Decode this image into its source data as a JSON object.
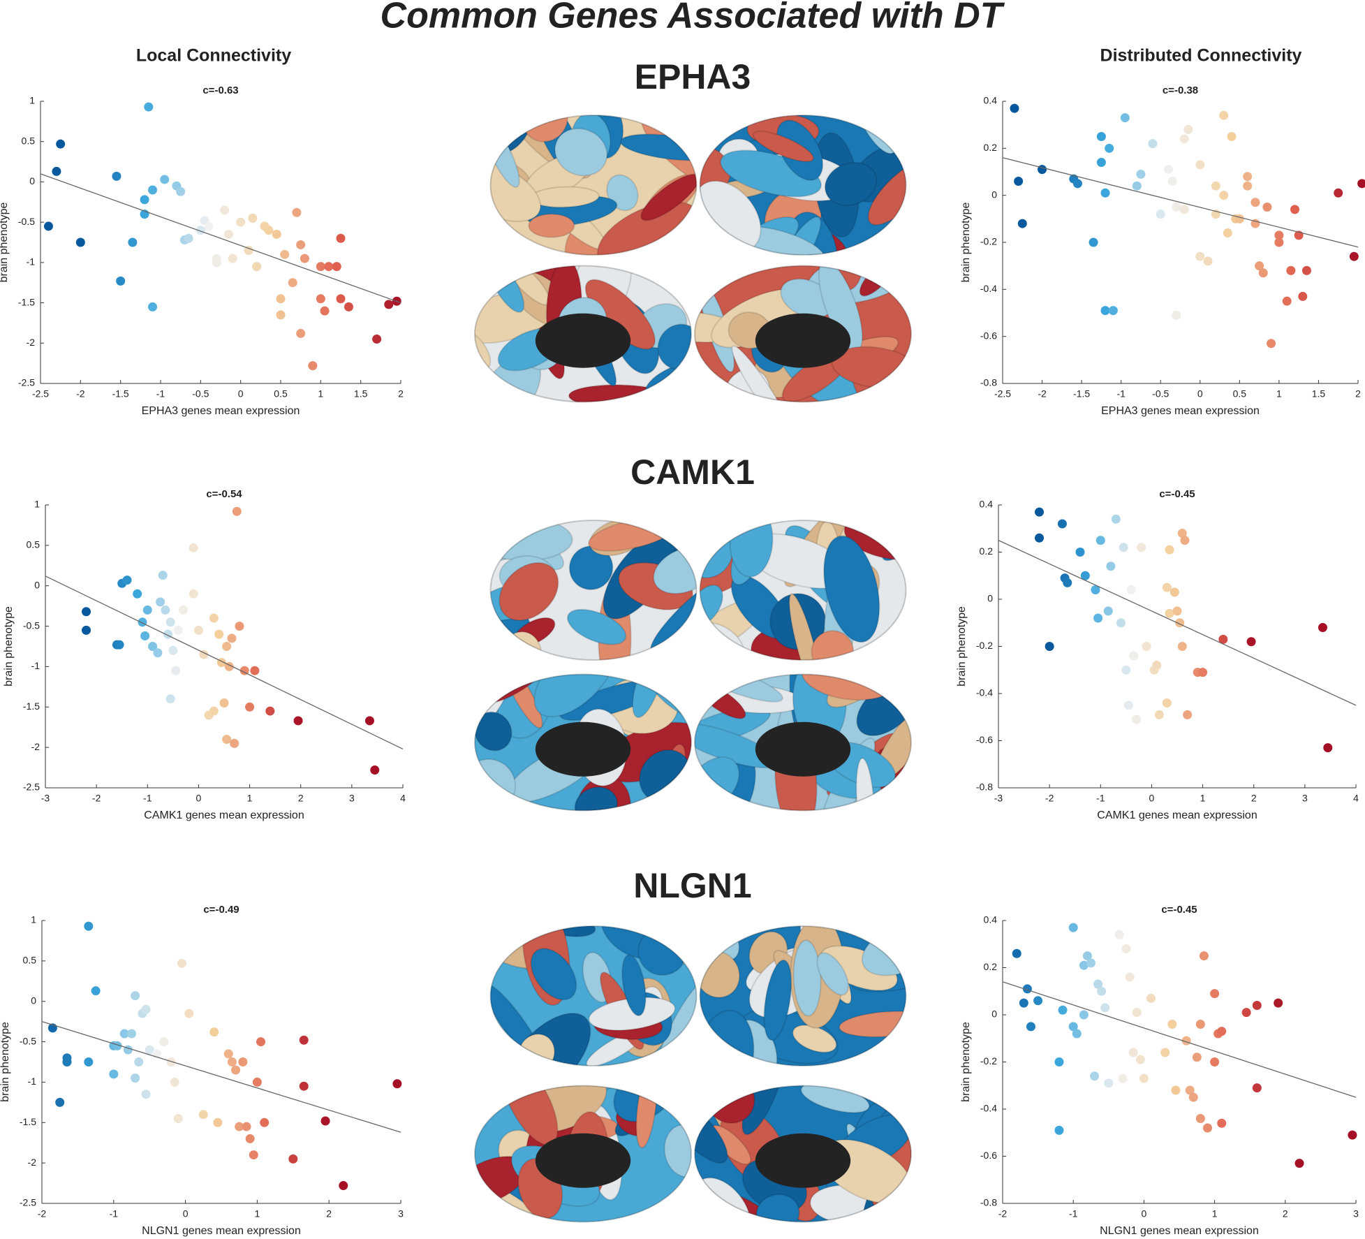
{
  "title": "Common Genes Associated with DT",
  "column_titles": [
    "Local Connectivity",
    "Distributed Connectivity"
  ],
  "genes": [
    "EPHA3",
    "CAMK1",
    "NLGN1"
  ],
  "chart_data": [
    {
      "type": "scatter",
      "title": "c=-0.63",
      "xlabel": "EPHA3 genes mean expression",
      "ylabel": "brain phenotype",
      "xlim": [
        -2.5,
        2
      ],
      "xticks": [
        -2.5,
        -2,
        -1.5,
        -1,
        -0.5,
        0,
        0.5,
        1,
        1.5,
        2
      ],
      "ylim": [
        -2.5,
        1
      ],
      "yticks": [
        -2.5,
        -2,
        -1.5,
        -1,
        -0.5,
        0,
        0.5,
        1
      ],
      "colormap": [
        "#08589e",
        "#3aa6dc",
        "#f0f0f0",
        "#f3cf9c",
        "#e0604f",
        "#a50f26"
      ],
      "color_limits": [
        -2,
        2
      ],
      "fit": {
        "x": [
          -2.5,
          2
        ],
        "y": [
          0.1,
          -1.5
        ],
        "color": "#666666"
      },
      "x": [
        -2.4,
        -2.3,
        -2.25,
        -2,
        -1.55,
        -1.5,
        -1.35,
        -1.2,
        -1.2,
        -1.15,
        -1.1,
        -1.1,
        -0.95,
        -0.8,
        -0.75,
        -0.7,
        -0.65,
        -0.5,
        -0.45,
        -0.4,
        -0.3,
        -0.3,
        -0.2,
        -0.15,
        -0.1,
        0,
        0.1,
        0.15,
        0.2,
        0.3,
        0.35,
        0.45,
        0.5,
        0.5,
        0.55,
        0.65,
        0.7,
        0.75,
        0.75,
        0.8,
        0.9,
        1,
        1,
        1.05,
        1.1,
        1.2,
        1.25,
        1.25,
        1.35,
        1.7,
        1.85,
        1.95
      ],
      "y": [
        -0.55,
        0.13,
        0.47,
        -0.75,
        0.07,
        -1.23,
        -0.75,
        -0.22,
        -0.4,
        0.93,
        -0.1,
        -1.55,
        0.03,
        -0.05,
        -0.12,
        -0.72,
        -0.7,
        -0.6,
        -0.48,
        -0.55,
        -0.95,
        -1.0,
        -0.35,
        -0.65,
        -0.95,
        -0.5,
        -0.85,
        -0.45,
        -1.05,
        -0.55,
        -0.6,
        -0.65,
        -1.45,
        -1.65,
        -0.9,
        -1.25,
        -0.38,
        -0.78,
        -1.88,
        -0.95,
        -2.28,
        -1.45,
        -1.05,
        -1.6,
        -1.05,
        -1.05,
        -0.7,
        -1.45,
        -1.55,
        -1.95,
        -1.52,
        -1.48
      ]
    },
    {
      "type": "scatter",
      "title": "c=-0.38",
      "xlabel": "EPHA3 genes mean expression",
      "ylabel": "brain phenotype",
      "xlim": [
        -2.5,
        2
      ],
      "xticks": [
        -2.5,
        -2,
        -1.5,
        -1,
        -0.5,
        0,
        0.5,
        1,
        1.5,
        2
      ],
      "ylim": [
        -0.8,
        0.4
      ],
      "yticks": [
        -0.8,
        -0.6,
        -0.4,
        -0.2,
        0,
        0.2,
        0.4
      ],
      "colormap": [
        "#08589e",
        "#3aa6dc",
        "#f0f0f0",
        "#f3cf9c",
        "#e0604f",
        "#a50f26"
      ],
      "color_limits": [
        -2,
        2
      ],
      "fit": {
        "x": [
          -2.5,
          2
        ],
        "y": [
          0.16,
          -0.22
        ],
        "color": "#666666"
      },
      "x": [
        -2.35,
        -2.3,
        -2.25,
        -2,
        -1.6,
        -1.55,
        -1.35,
        -1.25,
        -1.25,
        -1.2,
        -1.2,
        -1.15,
        -1.1,
        -0.95,
        -0.8,
        -0.75,
        -0.6,
        -0.5,
        -0.4,
        -0.35,
        -0.3,
        -0.3,
        -0.2,
        -0.2,
        -0.15,
        0,
        0,
        0.1,
        0.2,
        0.2,
        0.3,
        0.3,
        0.35,
        0.4,
        0.45,
        0.5,
        0.6,
        0.6,
        0.7,
        0.7,
        0.75,
        0.8,
        0.85,
        0.9,
        1,
        1,
        1.1,
        1.15,
        1.2,
        1.25,
        1.3,
        1.35,
        1.75,
        1.95,
        2.05
      ],
      "y": [
        0.37,
        0.06,
        -0.12,
        0.11,
        0.07,
        0.05,
        -0.2,
        0.25,
        0.14,
        0.01,
        -0.49,
        0.2,
        -0.49,
        0.33,
        0.04,
        0.09,
        0.22,
        -0.08,
        0.11,
        0.06,
        -0.05,
        -0.51,
        0.24,
        -0.06,
        0.28,
        0.13,
        -0.26,
        -0.28,
        -0.08,
        0.04,
        0,
        0.34,
        -0.16,
        0.25,
        -0.1,
        -0.1,
        0.08,
        0.04,
        -0.03,
        -0.12,
        -0.3,
        -0.33,
        -0.05,
        -0.63,
        -0.2,
        -0.17,
        -0.45,
        -0.32,
        -0.06,
        -0.17,
        -0.43,
        -0.32,
        0.01,
        -0.26,
        0.05
      ]
    },
    {
      "type": "scatter",
      "title": "c=-0.54",
      "xlabel": "CAMK1 genes mean expression",
      "ylabel": "brain phenotype",
      "xlim": [
        -3,
        4
      ],
      "xticks": [
        -3,
        -2,
        -1,
        0,
        1,
        2,
        3,
        4
      ],
      "ylim": [
        -2.5,
        1
      ],
      "yticks": [
        -2.5,
        -2,
        -1.5,
        -1,
        -0.5,
        0,
        0.5,
        1
      ],
      "colormap": [
        "#08589e",
        "#3aa6dc",
        "#f0f0f0",
        "#f3cf9c",
        "#e0604f",
        "#a50f26"
      ],
      "color_limits": [
        -2,
        2
      ],
      "fit": {
        "x": [
          -3,
          4
        ],
        "y": [
          0.12,
          -2.02
        ],
        "color": "#666666"
      },
      "x": [
        -2.2,
        -2.2,
        -1.6,
        -1.55,
        -1.5,
        -1.4,
        -1.2,
        -1.1,
        -1.05,
        -1,
        -0.9,
        -0.8,
        -0.75,
        -0.7,
        -0.65,
        -0.6,
        -0.55,
        -0.55,
        -0.5,
        -0.45,
        -0.4,
        -0.3,
        -0.1,
        -0.1,
        0,
        0.1,
        0.2,
        0.3,
        0.3,
        0.4,
        0.45,
        0.5,
        0.55,
        0.55,
        0.6,
        0.65,
        0.7,
        0.75,
        0.8,
        0.9,
        1,
        1.1,
        1.4,
        1.95,
        3.35,
        3.45
      ],
      "y": [
        -0.32,
        -0.55,
        -0.73,
        -0.73,
        0.03,
        0.07,
        -0.1,
        -0.45,
        -0.62,
        -0.3,
        -0.75,
        -0.83,
        -0.2,
        0.13,
        -0.3,
        -0.6,
        -0.45,
        -1.4,
        -0.8,
        -1.05,
        -0.55,
        -0.3,
        0.47,
        -0.1,
        -0.55,
        -0.85,
        -1.6,
        -1.55,
        -0.4,
        -0.6,
        -0.95,
        -1.45,
        -0.75,
        -1.9,
        -1.0,
        -0.65,
        -1.95,
        0.92,
        -0.5,
        -1.05,
        -1.5,
        -1.05,
        -1.55,
        -1.67,
        -1.67,
        -2.28
      ]
    },
    {
      "type": "scatter",
      "title": "c=-0.45",
      "xlabel": "CAMK1 genes mean expression",
      "ylabel": "brain phenotype",
      "xlim": [
        -3,
        4
      ],
      "xticks": [
        -3,
        -2,
        -1,
        0,
        1,
        2,
        3,
        4
      ],
      "ylim": [
        -0.8,
        0.4
      ],
      "yticks": [
        -0.8,
        -0.6,
        -0.4,
        -0.2,
        0,
        0.2,
        0.4
      ],
      "colormap": [
        "#08589e",
        "#3aa6dc",
        "#f0f0f0",
        "#f3cf9c",
        "#e0604f",
        "#a50f26"
      ],
      "color_limits": [
        -2,
        2
      ],
      "fit": {
        "x": [
          -3,
          4
        ],
        "y": [
          0.25,
          -0.45
        ],
        "color": "#666666"
      },
      "x": [
        -2.2,
        -2.2,
        -2,
        -1.75,
        -1.7,
        -1.65,
        -1.4,
        -1.3,
        -1.1,
        -1,
        -1.05,
        -0.85,
        -0.8,
        -0.7,
        -0.6,
        -0.55,
        -0.5,
        -0.45,
        -0.4,
        -0.35,
        -0.3,
        -0.2,
        -0.1,
        0.05,
        0.1,
        0.15,
        0.3,
        0.3,
        0.35,
        0.35,
        0.45,
        0.5,
        0.55,
        0.6,
        0.6,
        0.65,
        0.7,
        0.9,
        1,
        1.4,
        1.95,
        3.35,
        3.45
      ],
      "y": [
        0.37,
        0.26,
        -0.2,
        0.32,
        0.09,
        0.07,
        0.2,
        0.1,
        0.04,
        0.25,
        -0.08,
        -0.05,
        0.14,
        0.34,
        -0.1,
        0.22,
        -0.3,
        -0.45,
        0.04,
        -0.24,
        -0.51,
        0.22,
        -0.2,
        -0.3,
        -0.28,
        -0.49,
        0.05,
        -0.44,
        0.21,
        -0.06,
        0.03,
        -0.05,
        -0.1,
        0.28,
        -0.2,
        0.25,
        -0.49,
        -0.31,
        -0.31,
        -0.17,
        -0.18,
        -0.12,
        -0.63
      ]
    },
    {
      "type": "scatter",
      "title": "c=-0.49",
      "xlabel": "NLGN1 genes mean expression",
      "ylabel": "brain phenotype",
      "xlim": [
        -2,
        3
      ],
      "xticks": [
        -2,
        -1,
        0,
        1,
        2,
        3
      ],
      "ylim": [
        -2.5,
        1
      ],
      "yticks": [
        -2.5,
        -2,
        -1.5,
        -1,
        -0.5,
        0,
        0.5,
        1
      ],
      "colormap": [
        "#08589e",
        "#3aa6dc",
        "#f0f0f0",
        "#f3cf9c",
        "#e0604f",
        "#a50f26"
      ],
      "color_limits": [
        -2,
        2
      ],
      "fit": {
        "x": [
          -2,
          3
        ],
        "y": [
          -0.25,
          -1.62
        ],
        "color": "#666666"
      },
      "x": [
        -1.85,
        -1.75,
        -1.65,
        -1.65,
        -1.35,
        -1.35,
        -1.25,
        -1,
        -1,
        -0.95,
        -0.85,
        -0.8,
        -0.75,
        -0.7,
        -0.7,
        -0.65,
        -0.6,
        -0.55,
        -0.55,
        -0.5,
        -0.4,
        -0.3,
        -0.2,
        -0.15,
        -0.1,
        -0.05,
        0.05,
        0.25,
        0.4,
        0.45,
        0.6,
        0.65,
        0.7,
        0.75,
        0.8,
        0.85,
        0.9,
        0.95,
        1,
        1.05,
        1.1,
        1.5,
        1.65,
        1.65,
        1.95,
        2.2,
        2.95
      ],
      "y": [
        -0.33,
        -1.25,
        -0.7,
        -0.75,
        0.93,
        -0.75,
        0.13,
        -0.9,
        -0.55,
        -0.55,
        -0.4,
        -0.6,
        -0.4,
        0.07,
        -0.95,
        -0.75,
        -0.15,
        -0.1,
        -1.15,
        -0.6,
        -0.65,
        -0.5,
        -0.75,
        -1.0,
        -1.45,
        0.47,
        -0.15,
        -1.4,
        -0.38,
        -1.5,
        -0.65,
        -0.75,
        -0.85,
        -1.55,
        -0.75,
        -1.55,
        -1.7,
        -1.9,
        -1.0,
        -0.5,
        -1.5,
        -1.95,
        -0.48,
        -1.05,
        -1.48,
        -2.28,
        -1.02
      ]
    },
    {
      "type": "scatter",
      "title": "c=-0.45",
      "xlabel": "NLGN1 genes mean expression",
      "ylabel": "brain phenotype",
      "xlim": [
        -2,
        3
      ],
      "xticks": [
        -2,
        -1,
        0,
        1,
        2,
        3
      ],
      "ylim": [
        -0.8,
        0.4
      ],
      "yticks": [
        -0.8,
        -0.6,
        -0.4,
        -0.2,
        0,
        0.2,
        0.4
      ],
      "colormap": [
        "#08589e",
        "#3aa6dc",
        "#f0f0f0",
        "#f3cf9c",
        "#e0604f",
        "#a50f26"
      ],
      "color_limits": [
        -2,
        2
      ],
      "fit": {
        "x": [
          -2,
          3
        ],
        "y": [
          0.14,
          -0.35
        ],
        "color": "#666666"
      },
      "x": [
        -1.8,
        -1.7,
        -1.65,
        -1.6,
        -1.5,
        -1.2,
        -1.2,
        -1.15,
        -1,
        -1,
        -0.95,
        -0.85,
        -0.85,
        -0.8,
        -0.75,
        -0.7,
        -0.65,
        -0.6,
        -0.55,
        -0.5,
        -0.35,
        -0.3,
        -0.25,
        -0.2,
        -0.15,
        -0.1,
        -0.05,
        0,
        0.1,
        0.3,
        0.4,
        0.45,
        0.6,
        0.65,
        0.7,
        0.75,
        0.8,
        0.8,
        0.85,
        0.9,
        1,
        1,
        1.05,
        1.1,
        1.1,
        1.45,
        1.6,
        1.6,
        1.9,
        2.2,
        2.95
      ],
      "y": [
        0.26,
        0.05,
        0.11,
        -0.05,
        0.06,
        -0.2,
        -0.49,
        0.02,
        0.37,
        -0.05,
        -0.08,
        0.21,
        0,
        0.25,
        0.22,
        -0.26,
        0.13,
        0.1,
        0.03,
        -0.29,
        0.34,
        -0.27,
        0.28,
        0.16,
        -0.16,
        0.01,
        -0.19,
        -0.27,
        0.07,
        -0.16,
        -0.04,
        -0.32,
        -0.11,
        -0.32,
        -0.35,
        -0.18,
        -0.04,
        -0.44,
        0.25,
        -0.48,
        -0.2,
        0.09,
        -0.08,
        -0.46,
        -0.07,
        0.01,
        0.04,
        -0.31,
        0.05,
        -0.63,
        -0.51
      ]
    }
  ]
}
